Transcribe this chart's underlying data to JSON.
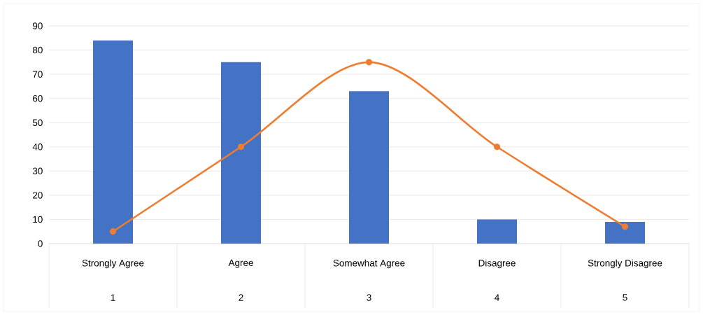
{
  "chart_data": {
    "type": "bar",
    "categories": [
      "Strongly Agree",
      "Agree",
      "Somewhat Agree",
      "Disagree",
      "Strongly Disagree"
    ],
    "series": [
      {
        "color": "#4472c4",
        "values": [
          84,
          75,
          63,
          10,
          9
        ]
      },
      {
        "type": "line",
        "color": "#ed7d31",
        "values": [
          5,
          40,
          75,
          40,
          7
        ],
        "marker": "circle",
        "line_style": "solid"
      }
    ],
    "annotations": [
      "1",
      "2",
      "3",
      "4",
      "5"
    ],
    "ylim": [
      0,
      90
    ],
    "yticks": [
      0,
      10,
      20,
      30,
      40,
      50,
      60,
      70,
      80,
      90
    ],
    "grid": "y"
  }
}
